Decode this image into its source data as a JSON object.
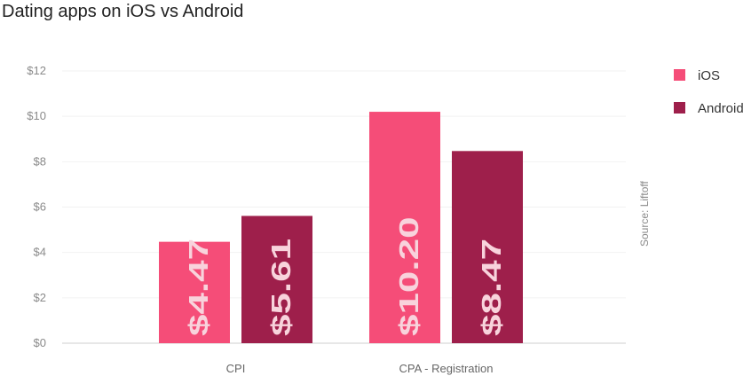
{
  "chart_data": {
    "type": "bar",
    "title": "Dating apps on iOS vs Android",
    "categories": [
      "CPI",
      "CPA - Registration"
    ],
    "series": [
      {
        "name": "iOS",
        "values": [
          4.47,
          10.2
        ],
        "labels": [
          "$4.47",
          "$10.20"
        ],
        "color": "#f54d78"
      },
      {
        "name": "Android",
        "values": [
          5.61,
          8.47
        ],
        "labels": [
          "$5.61",
          "$8.47"
        ],
        "color": "#9e1f4b"
      }
    ],
    "yticks": [
      "$0",
      "$2",
      "$4",
      "$6",
      "$8",
      "$10",
      "$12"
    ],
    "ylim": [
      0,
      12
    ],
    "grid": true,
    "legend": "top-right",
    "source": "Source: Liftoff"
  }
}
